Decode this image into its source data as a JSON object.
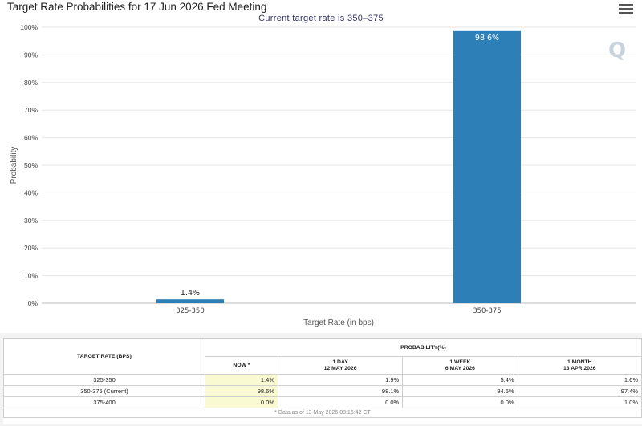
{
  "chart": {
    "title": "Target Rate Probabilities for 17 Jun 2026 Fed Meeting",
    "subtitle": "Current target rate is 350–375",
    "watermark": "Q"
  },
  "chart_data": {
    "type": "bar",
    "categories": [
      "325-350",
      "350-375"
    ],
    "values": [
      1.4,
      98.6
    ],
    "data_labels": [
      "1.4%",
      "98.6%"
    ],
    "title": "Target Rate Probabilities for 17 Jun 2026 Fed Meeting",
    "xlabel": "Target Rate (in bps)",
    "ylabel": "Probability",
    "ylim": [
      0,
      100
    ],
    "yticks": [
      "0%",
      "10%",
      "20%",
      "30%",
      "40%",
      "50%",
      "60%",
      "70%",
      "80%",
      "90%",
      "100%"
    ],
    "grid": true,
    "color": "#2d7fb8"
  },
  "table": {
    "col_target": "TARGET RATE (BPS)",
    "col_prob": "PROBABILITY(%)",
    "sub": [
      {
        "l1": "NOW *",
        "l2": ""
      },
      {
        "l1": "1 DAY",
        "l2": "12 MAY 2026"
      },
      {
        "l1": "1 WEEK",
        "l2": "6 MAY 2026"
      },
      {
        "l1": "1 MONTH",
        "l2": "13 APR 2026"
      }
    ],
    "rows": [
      {
        "rate": "325-350",
        "now": "1.4%",
        "d1": "1.9%",
        "w1": "5.4%",
        "m1": "1.6%"
      },
      {
        "rate": "350-375 (Current)",
        "now": "98.6%",
        "d1": "98.1%",
        "w1": "94.6%",
        "m1": "97.4%"
      },
      {
        "rate": "375-400",
        "now": "0.0%",
        "d1": "0.0%",
        "w1": "0.0%",
        "m1": "1.0%"
      }
    ],
    "footnote": "* Data as of 13 May 2026 08:16:42 CT"
  }
}
